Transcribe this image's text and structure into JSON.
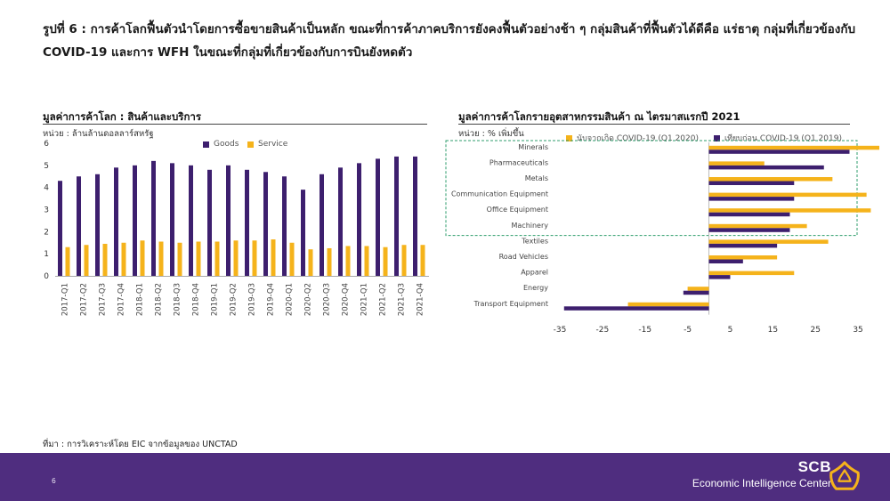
{
  "title": "รูปที่ 6 : การค้าโลกฟื้นตัวนำโดยการซื้อขายสินค้าเป็นหลัก ขณะที่การค้าภาคบริการยังคงฟื้นตัวอย่างช้า ๆ กลุ่มสินค้าที่ฟื้นตัวได้ดีคือ แร่ธาตุ กลุ่มที่เกี่ยวข้องกับ COVID-19 และการ WFH ในขณะที่กลุ่มที่เกี่ยวข้องกับการบินยังหดตัว",
  "left_panel": {
    "title": "มูลค่าการค้าโลก : สินค้าและบริการ",
    "unit": "หน่วย : ล้านล้านดอลลาร์สหรัฐ"
  },
  "right_panel": {
    "title": "มูลค่าการค้าโลกรายอุตสาหกรรมสินค้า ณ ไตรมาสแรกปี 2021",
    "unit": "หน่วย : % เพิ่มขึ้น"
  },
  "source": "ที่มา : การวิเคราะห์โดย EIC จากข้อมูลของ UNCTAD",
  "footer": {
    "page_number": "6",
    "brand": "SCB",
    "brand_subtitle": "Economic Intelligence Center"
  },
  "colors": {
    "goods": "#3d1f6e",
    "service": "#f5b31b",
    "footer": "#4f2d7f",
    "highlight_box": "#2f9e6c"
  },
  "chart_data": [
    {
      "type": "bar",
      "categories": [
        "2017-Q1",
        "2017-Q2",
        "2017-Q3",
        "2017-Q4",
        "2018-Q1",
        "2018-Q2",
        "2018-Q3",
        "2018-Q4",
        "2019-Q1",
        "2019-Q2",
        "2019-Q3",
        "2019-Q4",
        "2020-Q1",
        "2020-Q2",
        "2020-Q3",
        "2020-Q4",
        "2021-Q1",
        "2021-Q2",
        "2021-Q3",
        "2021-Q4"
      ],
      "series": [
        {
          "name": "Goods",
          "values": [
            4.3,
            4.5,
            4.6,
            4.9,
            5.0,
            5.2,
            5.1,
            5.0,
            4.8,
            5.0,
            4.8,
            4.7,
            4.5,
            3.9,
            4.6,
            4.9,
            5.1,
            5.3,
            5.4,
            5.4
          ]
        },
        {
          "name": "Service",
          "values": [
            1.3,
            1.4,
            1.45,
            1.5,
            1.6,
            1.55,
            1.5,
            1.55,
            1.55,
            1.6,
            1.6,
            1.65,
            1.5,
            1.2,
            1.25,
            1.35,
            1.35,
            1.3,
            1.4,
            1.4
          ]
        }
      ],
      "yticks": [
        "0",
        "1",
        "2",
        "3",
        "4",
        "5",
        "6"
      ],
      "ylim": [
        0,
        6
      ],
      "legend": "top-right"
    },
    {
      "type": "bar",
      "orientation": "horizontal",
      "categories": [
        "Minerals",
        "Pharmaceuticals",
        "Metals",
        "Communication Equipment",
        "Office Equipment",
        "Machinery",
        "Textiles",
        "Road Vehicles",
        "Apparel",
        "Energy",
        "Transport Equipment"
      ],
      "series": [
        {
          "name": "นับจากเกิด COVID-19 (Q1 2020)",
          "values": [
            40,
            13,
            29,
            37,
            38,
            23,
            28,
            16,
            20,
            -5,
            -19
          ]
        },
        {
          "name": "เทียบก่อน COVID-19 (Q1 2019)",
          "values": [
            33,
            27,
            20,
            20,
            19,
            19,
            16,
            8,
            5,
            -6,
            -34
          ]
        }
      ],
      "xticks": [
        "-35",
        "-25",
        "-15",
        "-5",
        "5",
        "15",
        "25",
        "35"
      ],
      "xlim": [
        -35,
        40
      ],
      "highlighted_categories": [
        "Minerals",
        "Pharmaceuticals",
        "Metals",
        "Communication Equipment",
        "Office Equipment",
        "Machinery"
      ],
      "legend": "top"
    }
  ]
}
